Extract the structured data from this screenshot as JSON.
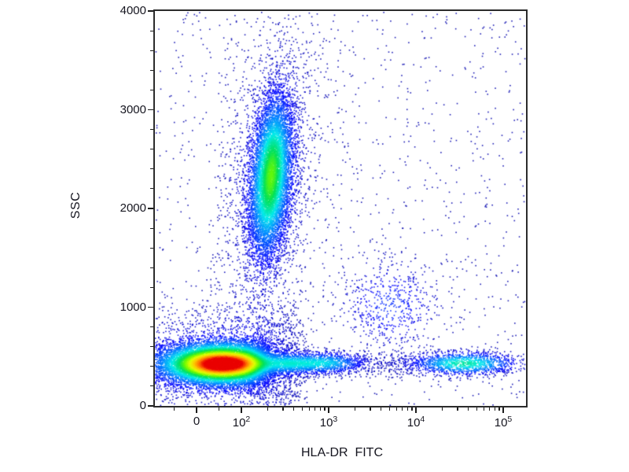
{
  "chart_data": {
    "type": "scatter",
    "subtype": "flow-cytometry-density-dot-plot",
    "title": "",
    "xlabel": "HLA-DR  FITC",
    "ylabel": "SSC",
    "x_axis": {
      "scale": "logicle",
      "note": "linear near 0, log10 above 100",
      "major_ticks": [
        {
          "value": 0,
          "base": "0",
          "sup": ""
        },
        {
          "value": 100,
          "base": "10",
          "sup": "2"
        },
        {
          "value": 1000,
          "base": "10",
          "sup": "3"
        },
        {
          "value": 10000,
          "base": "10",
          "sup": "4"
        },
        {
          "value": 100000,
          "base": "10",
          "sup": "5"
        }
      ],
      "minor_ticks": [
        -50,
        50,
        200,
        300,
        400,
        500,
        600,
        700,
        800,
        900,
        2000,
        3000,
        4000,
        5000,
        6000,
        7000,
        8000,
        9000,
        20000,
        30000,
        40000,
        50000,
        60000,
        70000,
        80000,
        90000
      ]
    },
    "y_axis": {
      "scale": "linear",
      "min": 0,
      "max": 4000,
      "major_ticks": [
        {
          "value": 0,
          "label": "0"
        },
        {
          "value": 1000,
          "label": "1000"
        },
        {
          "value": 2000,
          "label": "2000"
        },
        {
          "value": 3000,
          "label": "3000"
        },
        {
          "value": 4000,
          "label": "4000"
        }
      ],
      "minor_ticks": [
        200,
        400,
        600,
        800,
        1200,
        1400,
        1600,
        1800,
        2200,
        2400,
        2600,
        2800,
        3200,
        3400,
        3600,
        3800
      ]
    },
    "palette": {
      "frame_border": "#2b2b2b",
      "label_color": "#15151f",
      "dot_base": "#00008c",
      "gradient": [
        [
          0.0,
          0,
          0,
          140
        ],
        [
          0.14,
          0,
          0,
          255
        ],
        [
          0.3,
          0,
          140,
          255
        ],
        [
          0.42,
          0,
          235,
          235
        ],
        [
          0.55,
          0,
          225,
          90
        ],
        [
          0.65,
          110,
          250,
          0
        ],
        [
          0.75,
          225,
          255,
          0
        ],
        [
          0.84,
          255,
          195,
          0
        ],
        [
          0.92,
          255,
          110,
          0
        ],
        [
          1.0,
          235,
          0,
          0
        ]
      ]
    },
    "populations": [
      {
        "name": "background_scatter",
        "n": 1100,
        "peak": 0,
        "x": {
          "dist": "uniform",
          "space": "frac",
          "min": 0,
          "max": 1
        },
        "y": {
          "dist": "uniform",
          "space": "frac",
          "min": 0,
          "max": 1
        },
        "rho": 0
      },
      {
        "name": "granulocyte_halo",
        "n": 1500,
        "peak": 0.08,
        "x": {
          "dist": "normal",
          "space": "log10",
          "mean": 2.33,
          "sd": 0.3
        },
        "y": {
          "dist": "normal",
          "mean": 2300,
          "sd": 820
        },
        "rho": 0.25
      },
      {
        "name": "lymphocyte_halo",
        "n": 2800,
        "peak": 0.1,
        "x": {
          "dist": "normal",
          "space": "linear",
          "mean": 90,
          "sd": 190
        },
        "y": {
          "dist": "normal",
          "mean": 450,
          "sd": 300
        },
        "rho": 0
      },
      {
        "name": "hladr_positive_band_base",
        "n": 850,
        "peak": 0,
        "x": {
          "dist": "uniform",
          "space": "log10",
          "min": 2.5,
          "max": 5.12
        },
        "y": {
          "dist": "normal",
          "mean": 430,
          "sd": 70
        },
        "rho": 0
      },
      {
        "name": "dr_positive_monocyte_scatter",
        "n": 520,
        "peak": 0.15,
        "x": {
          "dist": "normal",
          "space": "log10",
          "mean": 3.7,
          "sd": 0.3
        },
        "y": {
          "dist": "normal",
          "mean": 1020,
          "sd": 240
        },
        "rho": 0
      },
      {
        "name": "hladr_band_mid",
        "n": 700,
        "peak": 0.3,
        "x": {
          "dist": "normal",
          "space": "log10",
          "mean": 3.0,
          "sd": 0.24
        },
        "y": {
          "dist": "normal",
          "mean": 435,
          "sd": 60
        },
        "rho": 0
      },
      {
        "name": "hladr_band_bright",
        "n": 1000,
        "peak": 0.45,
        "x": {
          "dist": "normal",
          "space": "log10",
          "mean": 4.55,
          "sd": 0.33
        },
        "y": {
          "dist": "normal",
          "mean": 430,
          "sd": 62
        },
        "rho": 0
      },
      {
        "name": "lymphocyte_tail",
        "n": 1300,
        "peak": 0.32,
        "x": {
          "dist": "normal",
          "space": "log10",
          "mean": 2.52,
          "sd": 0.26
        },
        "y": {
          "dist": "normal",
          "mean": 430,
          "sd": 62
        },
        "rho": 0
      },
      {
        "name": "granulocytes",
        "n": 8500,
        "peak": 0.52,
        "x": {
          "dist": "normal",
          "space": "log10",
          "mean": 2.34,
          "sd": 0.125
        },
        "y": {
          "dist": "normal",
          "mean": 2330,
          "sd": 420
        },
        "rho": 0.3
      },
      {
        "name": "lymphocytes_monocytes",
        "n": 13000,
        "peak": 1.0,
        "x": {
          "dist": "normal",
          "space": "linear",
          "mean": 55,
          "sd": 72
        },
        "y": {
          "dist": "normal",
          "mean": 425,
          "sd": 110
        },
        "rho": 0
      }
    ]
  }
}
